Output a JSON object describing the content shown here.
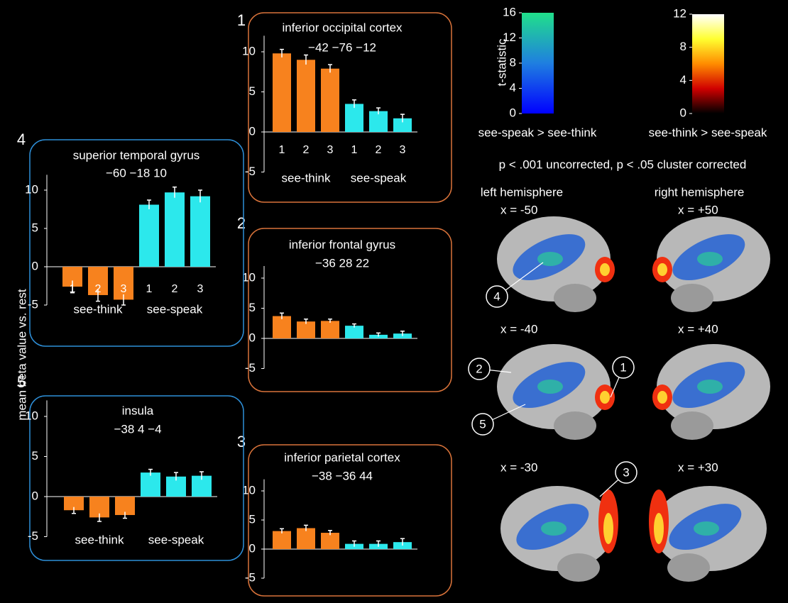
{
  "y_axis_label": "mean beta value vs. rest",
  "chart_data": [
    {
      "type": "bar",
      "number": "1",
      "title": "inferior occipital cortex",
      "subtitle": "−42 −76 −12",
      "categories": [
        "1",
        "2",
        "3",
        "1",
        "2",
        "3"
      ],
      "group_labels": [
        "see-think",
        "see-speak"
      ],
      "values": [
        9.8,
        9.0,
        7.9,
        3.5,
        2.6,
        1.7
      ],
      "errors": [
        0.5,
        0.6,
        0.5,
        0.5,
        0.4,
        0.5
      ],
      "colors": [
        "#f7821e",
        "#f7821e",
        "#f7821e",
        "#2ce8ec",
        "#2ce8ec",
        "#2ce8ec"
      ],
      "ylim": [
        -5,
        12
      ],
      "yticks": [
        -5,
        0,
        5,
        10
      ]
    },
    {
      "type": "bar",
      "number": "2",
      "title": "inferior frontal gyrus",
      "subtitle": "−36 28 22",
      "values": [
        3.7,
        2.8,
        2.9,
        2.1,
        0.6,
        0.8
      ],
      "errors": [
        0.5,
        0.4,
        0.3,
        0.3,
        0.3,
        0.4
      ],
      "colors": [
        "#f7821e",
        "#f7821e",
        "#f7821e",
        "#2ce8ec",
        "#2ce8ec",
        "#2ce8ec"
      ],
      "ylim": [
        -5,
        12
      ],
      "yticks": [
        -5,
        0,
        5,
        10
      ]
    },
    {
      "type": "bar",
      "number": "3",
      "title": "inferior parietal cortex",
      "subtitle": "−38 −36 44",
      "values": [
        3.1,
        3.6,
        2.8,
        0.9,
        0.9,
        1.2
      ],
      "errors": [
        0.4,
        0.5,
        0.4,
        0.5,
        0.5,
        0.6
      ],
      "colors": [
        "#f7821e",
        "#f7821e",
        "#f7821e",
        "#2ce8ec",
        "#2ce8ec",
        "#2ce8ec"
      ],
      "ylim": [
        -5,
        12
      ],
      "yticks": [
        -5,
        0,
        5,
        10
      ]
    },
    {
      "type": "bar",
      "number": "4",
      "title": "superior temporal gyrus",
      "subtitle": "−60 −18 10",
      "categories": [
        "1",
        "2",
        "3",
        "1",
        "2",
        "3"
      ],
      "group_labels": [
        "see-think",
        "see-speak"
      ],
      "values": [
        -2.6,
        -3.7,
        -4.3,
        8.1,
        9.7,
        9.2
      ],
      "errors": [
        0.8,
        0.8,
        0.7,
        0.6,
        0.7,
        0.8
      ],
      "colors": [
        "#f7821e",
        "#f7821e",
        "#f7821e",
        "#2ce8ec",
        "#2ce8ec",
        "#2ce8ec"
      ],
      "ylim": [
        -5,
        12
      ],
      "yticks": [
        -5,
        0,
        5,
        10
      ]
    },
    {
      "type": "bar",
      "number": "5",
      "title": "insula",
      "subtitle": "−38 4 −4",
      "group_labels": [
        "see-think",
        "see-speak"
      ],
      "values": [
        -1.7,
        -2.6,
        -2.3,
        3.0,
        2.5,
        2.6
      ],
      "errors": [
        0.4,
        0.5,
        0.4,
        0.4,
        0.5,
        0.5
      ],
      "colors": [
        "#f7821e",
        "#f7821e",
        "#f7821e",
        "#2ce8ec",
        "#2ce8ec",
        "#2ce8ec"
      ],
      "ylim": [
        -5,
        12
      ],
      "yticks": [
        -5,
        0,
        5,
        10
      ]
    }
  ],
  "colorbars": [
    {
      "label": "t-statistic",
      "lim": [
        0,
        16
      ],
      "ticks": [
        0,
        4,
        8,
        12,
        16
      ],
      "caption": "see-speak > see-think",
      "colors": [
        "#0000ff",
        "#1f7fe0",
        "#20e08a"
      ]
    },
    {
      "lim": [
        0,
        12
      ],
      "ticks": [
        0,
        4,
        8,
        12
      ],
      "caption": "see-think > see-speak",
      "colors": [
        "#000000",
        "#d00000",
        "#ff8c00",
        "#ffff30",
        "#ffffff"
      ]
    }
  ],
  "threshold_note": "p < .001 uncorrected, p < .05 cluster corrected",
  "hemispheres": [
    "left hemisphere",
    "right hemisphere"
  ],
  "slices": [
    "x = -50",
    "x = +50",
    "x = -40",
    "x = +40",
    "x = -30",
    "x = +30"
  ],
  "callouts": [
    "4",
    "2",
    "1",
    "5",
    "3"
  ]
}
